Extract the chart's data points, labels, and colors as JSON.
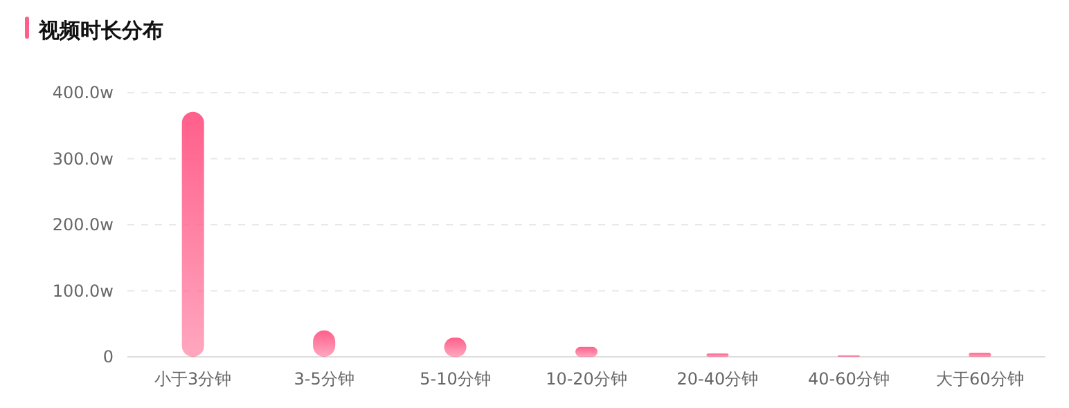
{
  "chart_data": {
    "type": "bar",
    "title": "视频时长分布",
    "categories": [
      "小于3分钟",
      "3-5分钟",
      "5-10分钟",
      "10-20分钟",
      "20-40分钟",
      "40-60分钟",
      "大于60分钟"
    ],
    "values": [
      371,
      40,
      29,
      15,
      5,
      2,
      6
    ],
    "color": "#ff5f8b",
    "ylim": [
      0,
      400
    ],
    "yticks": [
      {
        "value": 0,
        "label": "0"
      },
      {
        "value": 100,
        "label": "100.0w"
      },
      {
        "value": 200,
        "label": "200.0w"
      },
      {
        "value": 300,
        "label": "300.0w"
      },
      {
        "value": 400,
        "label": "400.0w"
      }
    ],
    "grid": "y"
  }
}
